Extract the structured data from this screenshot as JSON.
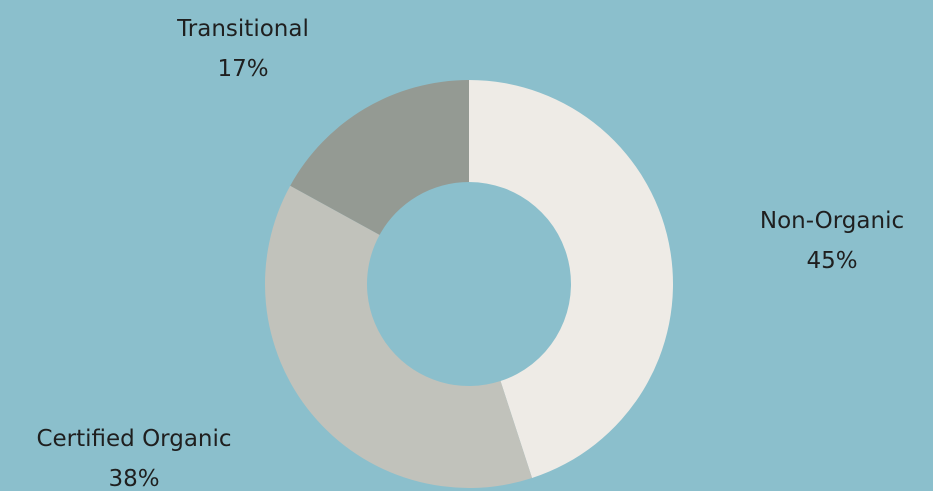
{
  "chart_data": {
    "type": "pie",
    "donut": true,
    "categories": [
      "Non-Organic",
      "Certified Organic",
      "Transitional"
    ],
    "values": [
      45,
      38,
      17
    ],
    "value_labels": [
      "45%",
      "38%",
      "17%"
    ],
    "colors": [
      "#eeebe6",
      "#c1c2bb",
      "#949a93"
    ],
    "background": "#8bbfcc",
    "label_color": "#1f1f1f",
    "title": "",
    "legend": "none"
  }
}
